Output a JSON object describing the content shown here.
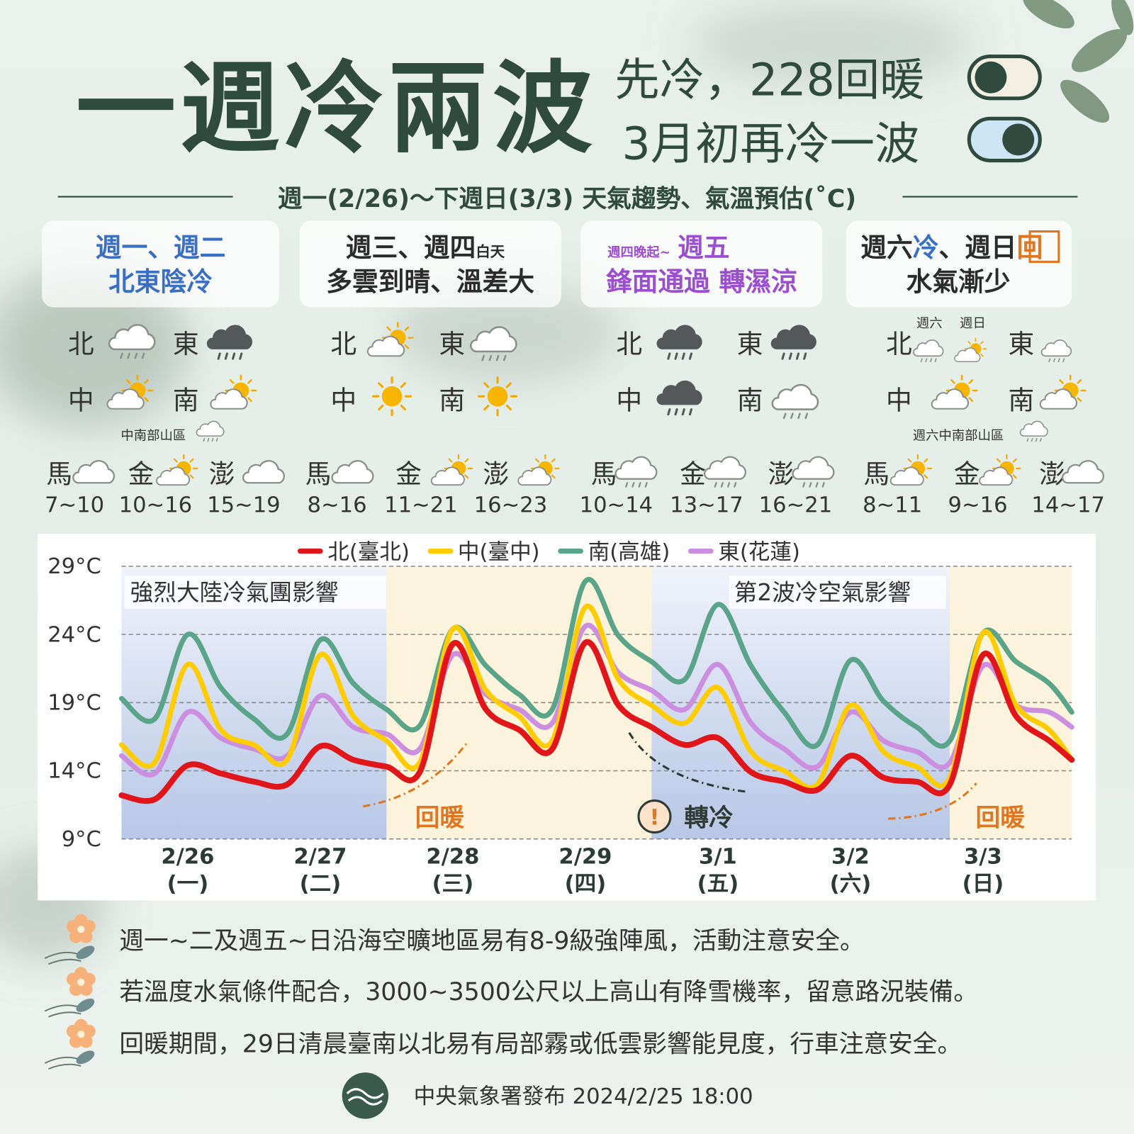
{
  "header": {
    "title": "一週冷兩波",
    "subtitles": [
      "先冷，228回暖",
      "3月初再冷一波"
    ],
    "period": "週一(2/26)～下週日(3/3) 天氣趨勢、氣溫預估(˚C)"
  },
  "panels": [
    {
      "heading": [
        "週一、週二"
      ],
      "subheading": "北東陰冷",
      "regions": [
        "北",
        "東",
        "中",
        "南"
      ],
      "notes": [
        "中南部山區"
      ],
      "islands": [
        {
          "name": "馬",
          "range": "7~10"
        },
        {
          "name": "金",
          "range": "10~16"
        },
        {
          "name": "澎",
          "range": "15~19"
        }
      ]
    },
    {
      "heading": [
        "週三、週四",
        "白天"
      ],
      "subheading": "多雲到晴、溫差大",
      "regions": [
        "北",
        "東",
        "中",
        "南"
      ],
      "notes": [],
      "islands": [
        {
          "name": "馬",
          "range": "8~16"
        },
        {
          "name": "金",
          "range": "11~21"
        },
        {
          "name": "澎",
          "range": "16~23"
        }
      ]
    },
    {
      "heading": [
        "週四晚起~",
        "週五"
      ],
      "subheading": "鋒面通過 轉濕涼",
      "regions": [
        "北",
        "東",
        "中",
        "南"
      ],
      "notes": [],
      "islands": [
        {
          "name": "馬",
          "range": "10~14"
        },
        {
          "name": "金",
          "range": "13~17"
        },
        {
          "name": "澎",
          "range": "16~21"
        }
      ]
    },
    {
      "heading": [
        "週六",
        "冷",
        "、週日",
        "回"
      ],
      "subheading": "水氣漸少",
      "regions": [
        "北",
        "東",
        "中",
        "南"
      ],
      "notes": [
        "週六",
        "週日",
        "週六中南部山區"
      ],
      "islands": [
        {
          "name": "馬",
          "range": "8~11"
        },
        {
          "name": "金",
          "range": "9~16"
        },
        {
          "name": "澎",
          "range": "14~17"
        }
      ]
    }
  ],
  "chart_data": {
    "type": "line",
    "x": [
      0,
      0.25,
      0.5,
      0.75,
      1,
      1.25,
      1.5,
      1.75,
      2,
      2.25,
      2.5,
      2.75,
      3,
      3.25,
      3.5,
      3.75,
      4,
      4.25,
      4.5,
      4.75,
      5,
      5.25,
      5.5,
      5.75,
      6,
      6.25,
      6.5,
      6.75,
      7,
      7.17
    ],
    "xlim": [
      0,
      7.17
    ],
    "xticks": [
      {
        "value": 0.5,
        "label": "2/26\n(一)"
      },
      {
        "value": 1.5,
        "label": "2/27\n(二)"
      },
      {
        "value": 2.5,
        "label": "2/28\n(三)"
      },
      {
        "value": 3.5,
        "label": "2/29\n(四)"
      },
      {
        "value": 4.5,
        "label": "3/1\n(五)"
      },
      {
        "value": 5.5,
        "label": "3/2\n(六)"
      },
      {
        "value": 6.5,
        "label": "3/3\n(日)"
      }
    ],
    "ylim": [
      9,
      29
    ],
    "yticks": [
      {
        "value": 9,
        "label": "9°C"
      },
      {
        "value": 14,
        "label": "14°C"
      },
      {
        "value": 19,
        "label": "19°C"
      },
      {
        "value": 24,
        "label": "24°C"
      },
      {
        "value": 29,
        "label": "29°C"
      }
    ],
    "grid": true,
    "series": [
      {
        "name": "北(臺北)",
        "color": "#e0161b",
        "values": [
          12.2,
          11.9,
          14.4,
          13.8,
          13.2,
          13.0,
          15.8,
          14.8,
          14.3,
          13.9,
          23.3,
          18.5,
          17.0,
          15.6,
          23.4,
          18.8,
          17.2,
          15.9,
          16.4,
          13.9,
          13.2,
          12.6,
          15.1,
          13.5,
          13.2,
          13.0,
          22.5,
          18.0,
          16.2,
          14.8
        ]
      },
      {
        "name": "中(臺中)",
        "color": "#ffcc00",
        "values": [
          15.9,
          14.6,
          21.8,
          17.0,
          15.9,
          14.8,
          22.5,
          18.0,
          16.2,
          14.6,
          24.4,
          19.9,
          18.0,
          16.2,
          26.0,
          20.7,
          18.8,
          17.5,
          20.1,
          15.4,
          14.0,
          13.0,
          18.8,
          15.4,
          14.3,
          13.5,
          24.1,
          18.8,
          17.0,
          14.8
        ]
      },
      {
        "name": "南(高雄)",
        "color": "#5aa58a",
        "values": [
          19.3,
          17.8,
          24.0,
          20.1,
          17.8,
          16.7,
          23.6,
          20.4,
          18.5,
          17.3,
          24.4,
          21.7,
          19.6,
          18.5,
          27.9,
          23.9,
          22.0,
          20.7,
          26.2,
          21.7,
          18.3,
          15.9,
          22.1,
          19.1,
          17.2,
          16.2,
          24.1,
          22.0,
          20.4,
          18.3
        ]
      },
      {
        "name": "東(花蓮)",
        "color": "#cc8fe0",
        "values": [
          15.1,
          13.8,
          18.3,
          16.4,
          15.6,
          15.1,
          19.5,
          17.2,
          16.7,
          15.6,
          22.5,
          19.6,
          18.5,
          17.5,
          24.6,
          21.2,
          19.9,
          18.5,
          21.8,
          17.5,
          15.6,
          14.3,
          18.3,
          16.2,
          15.4,
          14.6,
          21.7,
          18.8,
          18.3,
          17.2
        ]
      }
    ],
    "annotations": [
      "強烈大陸冷氣團影響",
      "第2波冷空氣影響",
      "回暖",
      "!",
      "轉冷",
      "回暖"
    ]
  },
  "footer": {
    "notes": [
      "週一~二及週五~日沿海空曠地區易有8-9級強陣風，活動注意安全。",
      "若溫度水氣條件配合，3000~3500公尺以上高山有降雪機率，留意路況裝備。",
      "回暖期間，29日清晨臺南以北易有局部霧或低雲影響能見度，行車注意安全。"
    ],
    "source": "中央氣象署發布 2024/2/25 18:00"
  }
}
